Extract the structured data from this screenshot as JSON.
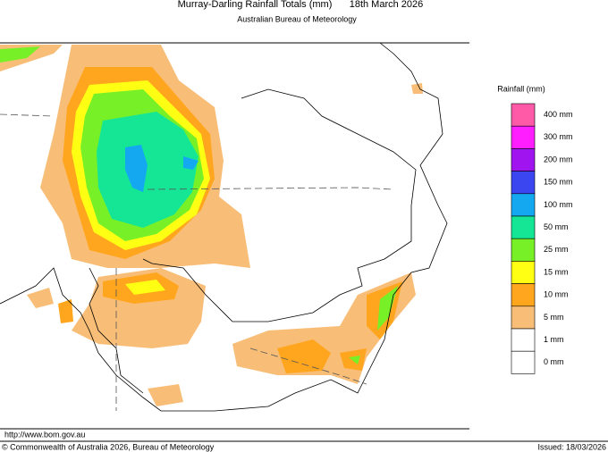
{
  "header": {
    "title": "Murray-Darling Rainfall Totals (mm)",
    "date": "18th March 2026",
    "subtitle": "Australian Bureau of Meteorology"
  },
  "legend": {
    "title": "Rainfall (mm)",
    "items": [
      {
        "label": "400 mm",
        "color": "#ff5aa8"
      },
      {
        "label": "300 mm",
        "color": "#ff1eff"
      },
      {
        "label": "200 mm",
        "color": "#a014f0"
      },
      {
        "label": "150 mm",
        "color": "#3c46f0"
      },
      {
        "label": "100 mm",
        "color": "#14a8f0"
      },
      {
        "label": "50 mm",
        "color": "#14e696"
      },
      {
        "label": "25 mm",
        "color": "#78f028"
      },
      {
        "label": "15 mm",
        "color": "#ffff14"
      },
      {
        "label": "10 mm",
        "color": "#ffa51e"
      },
      {
        "label": "5 mm",
        "color": "#f8be78"
      },
      {
        "label": "1 mm",
        "color": "#ffffff"
      },
      {
        "label": "0 mm",
        "color": "#ffffff"
      }
    ]
  },
  "footer": {
    "url": "http://www.bom.gov.au",
    "copyright": "© Commonwealth of Australia 2026, Bureau of Meteorology",
    "issued": "Issued: 18/03/2026"
  }
}
